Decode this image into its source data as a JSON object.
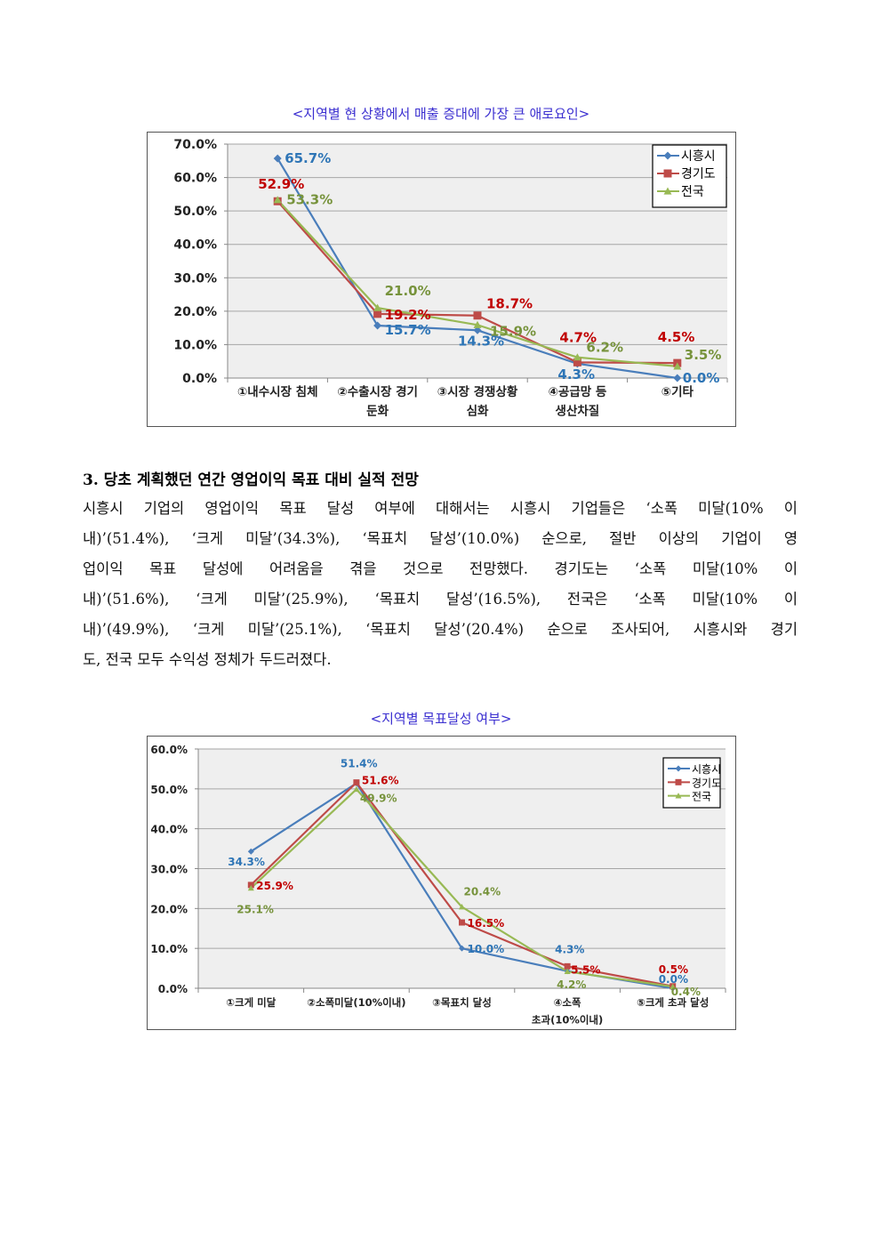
{
  "chart_data": [
    {
      "type": "line",
      "title": "<지역별 현 상황에서 매출 증대에 가장 큰 애로요인>",
      "categories": [
        [
          "①내수시장 침체"
        ],
        [
          "②수출시장 경기",
          "둔화"
        ],
        [
          "③시장 경쟁상황",
          "심화"
        ],
        [
          "④공급망 등",
          "생산차질"
        ],
        [
          "⑤기타"
        ]
      ],
      "ylim": [
        0,
        70
      ],
      "yticks": [
        "0.0%",
        "10.0%",
        "20.0%",
        "30.0%",
        "40.0%",
        "50.0%",
        "60.0%",
        "70.0%"
      ],
      "legend_position": "top-right",
      "grid": true,
      "series": [
        {
          "name": "시흥시",
          "color": "#4a7ebb",
          "label_color": "#2e75b6",
          "marker": "diamond",
          "values": [
            65.7,
            15.7,
            14.3,
            4.3,
            0.0
          ],
          "labels": [
            "65.7%",
            "15.7%",
            "14.3%",
            "4.3%",
            "0.0%"
          ]
        },
        {
          "name": "경기도",
          "color": "#be4b48",
          "label_color": "#c00000",
          "marker": "square",
          "values": [
            52.9,
            19.2,
            18.7,
            4.7,
            4.5
          ],
          "labels": [
            "52.9%",
            "19.2%",
            "18.7%",
            "4.7%",
            "4.5%"
          ]
        },
        {
          "name": "전국",
          "color": "#98b954",
          "label_color": "#77933c",
          "marker": "triangle",
          "values": [
            53.3,
            21.0,
            15.9,
            6.2,
            3.5
          ],
          "labels": [
            "53.3%",
            "21.0%",
            "15.9%",
            "6.2%",
            "3.5%"
          ]
        }
      ]
    },
    {
      "type": "line",
      "title": "<지역별 목표달성 여부>",
      "categories": [
        [
          "①크게 미달"
        ],
        [
          "②소폭미달(10%이내)"
        ],
        [
          "③목표치 달성"
        ],
        [
          "④소폭",
          "초과(10%이내)"
        ],
        [
          "⑤크게 초과 달성"
        ]
      ],
      "ylim": [
        0,
        60
      ],
      "yticks": [
        "0.0%",
        "10.0%",
        "20.0%",
        "30.0%",
        "40.0%",
        "50.0%",
        "60.0%"
      ],
      "legend_position": "top-right",
      "grid": true,
      "series": [
        {
          "name": "시흥시",
          "color": "#4a7ebb",
          "label_color": "#2e75b6",
          "marker": "diamond",
          "values": [
            34.3,
            51.4,
            10.0,
            4.3,
            0.0
          ],
          "labels": [
            "34.3%",
            "51.4%",
            "10.0%",
            "4.3%",
            "0.0%"
          ]
        },
        {
          "name": "경기도",
          "color": "#be4b48",
          "label_color": "#c00000",
          "marker": "square",
          "values": [
            25.9,
            51.6,
            16.5,
            5.5,
            0.5
          ],
          "labels": [
            "25.9%",
            "51.6%",
            "16.5%",
            "5.5%",
            "0.5%"
          ]
        },
        {
          "name": "전국",
          "color": "#98b954",
          "label_color": "#77933c",
          "marker": "triangle",
          "values": [
            25.1,
            49.9,
            20.4,
            4.2,
            0.4
          ],
          "labels": [
            "25.1%",
            "49.9%",
            "20.4%",
            "4.2%",
            "0.4%"
          ]
        }
      ]
    }
  ],
  "section": {
    "heading": "3. 당초 계획했던 연간 영업이익 목표 대비 실적 전망",
    "lines": [
      "시흥시 기업의 영업이익 목표 달성 여부에 대해서는 시흥시 기업들은 ‘소폭 미달(10% 이",
      "내)’(51.4%), ‘크게 미달’(34.3%), ‘목표치 달성’(10.0%) 순으로, 절반 이상의 기업이 영",
      "업이익 목표 달성에 어려움을 겪을 것으로 전망했다. 경기도는 ‘소폭 미달(10% 이",
      "내)’(51.6%), ‘크게 미달’(25.9%), ‘목표치 달성’(16.5%), 전국은 ‘소폭 미달(10% 이",
      "내)’(49.9%), ‘크게 미달’(25.1%), ‘목표치 달성’(20.4%) 순으로 조사되어, 시흥시와 경기",
      "도, 전국 모두 수익성 정체가 두드러졌다."
    ]
  }
}
